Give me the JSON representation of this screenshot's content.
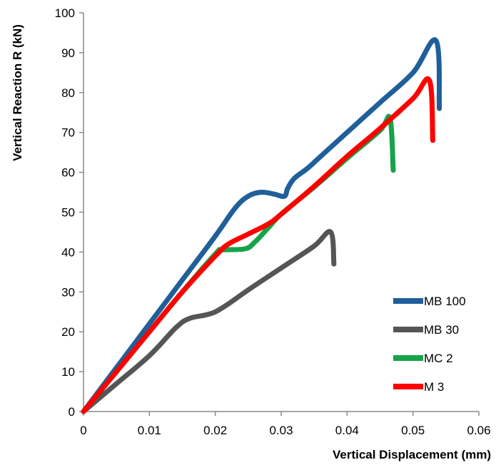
{
  "chart_data": {
    "type": "line",
    "title": "",
    "xlabel": "Vertical Displacement (mm)",
    "ylabel": "Vertical Reaction R (kN)",
    "xlim": [
      0,
      0.06
    ],
    "ylim": [
      0,
      100
    ],
    "xticks": [
      "0",
      "0.01",
      "0.02",
      "0.03",
      "0.04",
      "0.05",
      "0.06"
    ],
    "yticks": [
      "0",
      "10",
      "20",
      "30",
      "40",
      "50",
      "60",
      "70",
      "80",
      "90",
      "100"
    ],
    "grid": false,
    "legend_position": "bottom-right",
    "series": [
      {
        "name": "MB 100",
        "color": "#1f5f9a",
        "points": [
          [
            0,
            0
          ],
          [
            0.005,
            11
          ],
          [
            0.01,
            22
          ],
          [
            0.015,
            33
          ],
          [
            0.02,
            44
          ],
          [
            0.023,
            51
          ],
          [
            0.025,
            54
          ],
          [
            0.027,
            55
          ],
          [
            0.029,
            54.5
          ],
          [
            0.0305,
            54
          ],
          [
            0.031,
            56
          ],
          [
            0.032,
            58.5
          ],
          [
            0.034,
            61
          ],
          [
            0.036,
            64
          ],
          [
            0.04,
            70
          ],
          [
            0.045,
            77.5
          ],
          [
            0.05,
            85
          ],
          [
            0.0535,
            93
          ],
          [
            0.054,
            76
          ]
        ]
      },
      {
        "name": "MB 30",
        "color": "#555555",
        "points": [
          [
            0,
            0
          ],
          [
            0.005,
            7
          ],
          [
            0.01,
            14
          ],
          [
            0.014,
            21
          ],
          [
            0.016,
            23.3
          ],
          [
            0.0185,
            24.2
          ],
          [
            0.02,
            25
          ],
          [
            0.022,
            27
          ],
          [
            0.025,
            30.5
          ],
          [
            0.03,
            36
          ],
          [
            0.035,
            41.5
          ],
          [
            0.0375,
            45
          ],
          [
            0.038,
            37
          ]
        ]
      },
      {
        "name": "MC 2",
        "color": "#16a34a",
        "points": [
          [
            0,
            0
          ],
          [
            0.005,
            10
          ],
          [
            0.01,
            20
          ],
          [
            0.015,
            30
          ],
          [
            0.02,
            39.5
          ],
          [
            0.021,
            40.5
          ],
          [
            0.0245,
            40.8
          ],
          [
            0.026,
            42.5
          ],
          [
            0.028,
            46
          ],
          [
            0.03,
            49.5
          ],
          [
            0.035,
            56.3
          ],
          [
            0.04,
            63.5
          ],
          [
            0.045,
            70.5
          ],
          [
            0.0465,
            73.5
          ],
          [
            0.047,
            60.5
          ]
        ]
      },
      {
        "name": "M 3",
        "color": "#ff0000",
        "points": [
          [
            0,
            0
          ],
          [
            0.005,
            10
          ],
          [
            0.01,
            20
          ],
          [
            0.015,
            30
          ],
          [
            0.02,
            39
          ],
          [
            0.022,
            42
          ],
          [
            0.025,
            44.5
          ],
          [
            0.028,
            47
          ],
          [
            0.03,
            49.5
          ],
          [
            0.035,
            56.5
          ],
          [
            0.04,
            64
          ],
          [
            0.045,
            71
          ],
          [
            0.05,
            78.5
          ],
          [
            0.0525,
            83
          ],
          [
            0.053,
            68
          ]
        ]
      }
    ]
  }
}
